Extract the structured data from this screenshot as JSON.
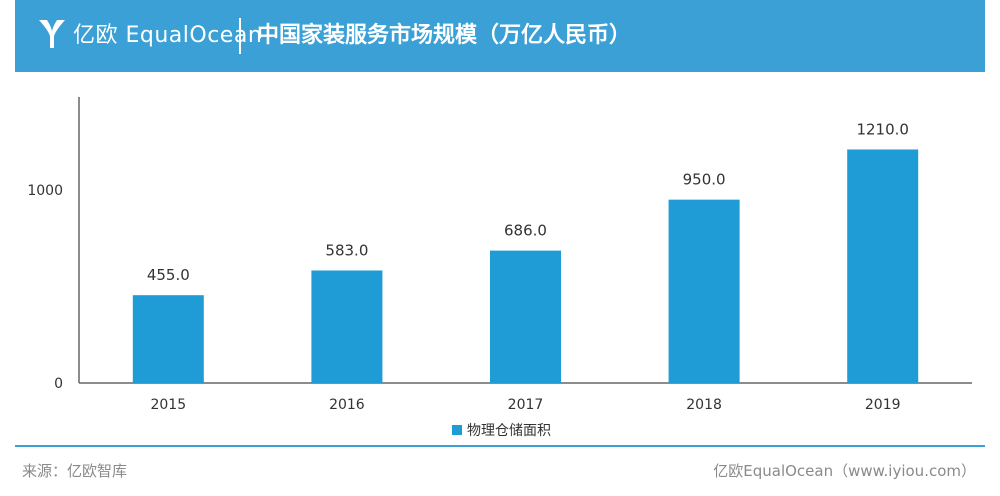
{
  "header": {
    "brand": "亿欧 EqualOcean",
    "logo_icon": "equalocean-logo-icon",
    "title": "中国家装服务市场规模（万亿人民币）"
  },
  "footer": {
    "source": "来源：亿欧智库",
    "credit": "亿欧EqualOcean（www.iyiou.com）"
  },
  "colors": {
    "header_bg": "#3aa0d6",
    "bar": "#1f9cd6",
    "axis": "#666666"
  },
  "chart_data": {
    "type": "bar",
    "title": "中国家装服务市场规模（万亿人民币）",
    "categories": [
      "2015",
      "2016",
      "2017",
      "2018",
      "2019"
    ],
    "series": [
      {
        "name": "物理仓储面积",
        "values": [
          455.0,
          583.0,
          686.0,
          950.0,
          1210.0
        ],
        "labels": [
          "455.0",
          "583.0",
          "686.0",
          "950.0",
          "1210.0"
        ]
      }
    ],
    "yticks": [
      "0",
      "1000"
    ],
    "ylim": [
      0,
      1500
    ],
    "grid": false,
    "legend_position": "bottom"
  }
}
